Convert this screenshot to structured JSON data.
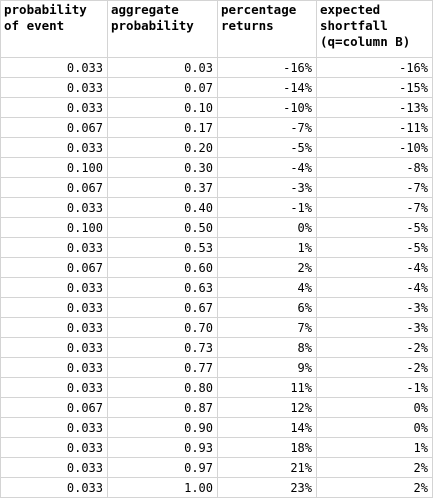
{
  "table": {
    "headers": [
      "probability of event",
      "aggregate probability",
      "percentage returns",
      "expected shortfall (q=column B)"
    ],
    "rows": [
      [
        "0.033",
        "0.03",
        "-16%",
        "-16%"
      ],
      [
        "0.033",
        "0.07",
        "-14%",
        "-15%"
      ],
      [
        "0.033",
        "0.10",
        "-10%",
        "-13%"
      ],
      [
        "0.067",
        "0.17",
        "-7%",
        "-11%"
      ],
      [
        "0.033",
        "0.20",
        "-5%",
        "-10%"
      ],
      [
        "0.100",
        "0.30",
        "-4%",
        "-8%"
      ],
      [
        "0.067",
        "0.37",
        "-3%",
        "-7%"
      ],
      [
        "0.033",
        "0.40",
        "-1%",
        "-7%"
      ],
      [
        "0.100",
        "0.50",
        "0%",
        "-5%"
      ],
      [
        "0.033",
        "0.53",
        "1%",
        "-5%"
      ],
      [
        "0.067",
        "0.60",
        "2%",
        "-4%"
      ],
      [
        "0.033",
        "0.63",
        "4%",
        "-4%"
      ],
      [
        "0.033",
        "0.67",
        "6%",
        "-3%"
      ],
      [
        "0.033",
        "0.70",
        "7%",
        "-3%"
      ],
      [
        "0.033",
        "0.73",
        "8%",
        "-2%"
      ],
      [
        "0.033",
        "0.77",
        "9%",
        "-2%"
      ],
      [
        "0.033",
        "0.80",
        "11%",
        "-1%"
      ],
      [
        "0.067",
        "0.87",
        "12%",
        "0%"
      ],
      [
        "0.033",
        "0.90",
        "14%",
        "0%"
      ],
      [
        "0.033",
        "0.93",
        "18%",
        "1%"
      ],
      [
        "0.033",
        "0.97",
        "21%",
        "2%"
      ],
      [
        "0.033",
        "1.00",
        "23%",
        "2%"
      ]
    ]
  }
}
